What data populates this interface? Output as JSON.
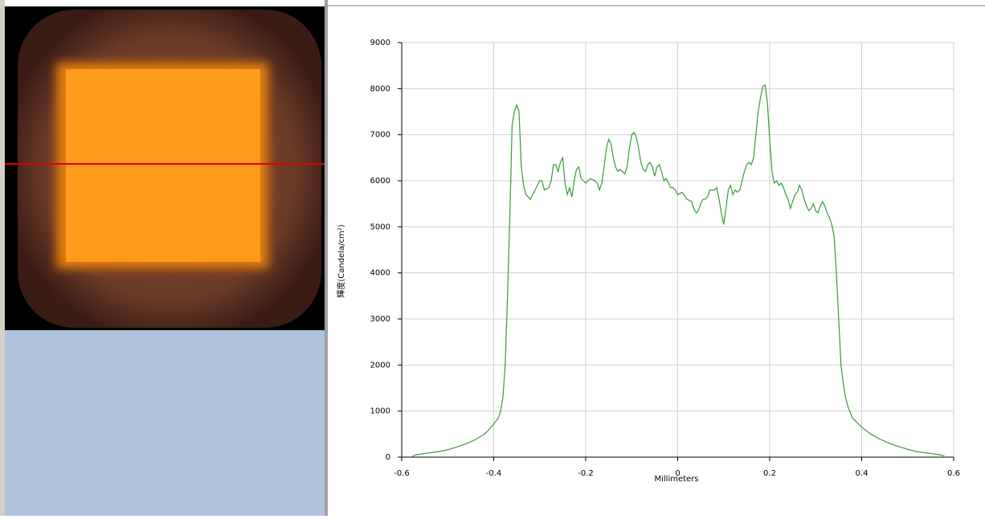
{
  "chart_data": {
    "type": "line",
    "x_label": "Millimeters",
    "y_label": "輝度(Candela/cm²)",
    "xlim": [
      -0.6,
      0.6
    ],
    "xticks": [
      -0.6,
      -0.4,
      -0.2,
      0,
      0.2,
      0.4,
      0.6
    ],
    "ylim": [
      0,
      9000
    ],
    "yticks": [
      0,
      1000,
      2000,
      3000,
      4000,
      5000,
      6000,
      7000,
      8000,
      9000
    ],
    "grid": true,
    "series": [
      {
        "color": "#3a9a3a",
        "x": [
          -0.58,
          -0.57,
          -0.55,
          -0.52,
          -0.5,
          -0.48,
          -0.46,
          -0.44,
          -0.42,
          -0.41,
          -0.4,
          -0.39,
          -0.385,
          -0.38,
          -0.375,
          -0.37,
          -0.365,
          -0.36,
          -0.355,
          -0.35,
          -0.345,
          -0.34,
          -0.335,
          -0.33,
          -0.32,
          -0.31,
          -0.3,
          -0.295,
          -0.29,
          -0.28,
          -0.275,
          -0.27,
          -0.265,
          -0.26,
          -0.255,
          -0.25,
          -0.245,
          -0.24,
          -0.235,
          -0.23,
          -0.225,
          -0.22,
          -0.215,
          -0.21,
          -0.2,
          -0.19,
          -0.18,
          -0.175,
          -0.17,
          -0.165,
          -0.16,
          -0.155,
          -0.15,
          -0.145,
          -0.14,
          -0.135,
          -0.13,
          -0.125,
          -0.12,
          -0.115,
          -0.11,
          -0.105,
          -0.1,
          -0.095,
          -0.09,
          -0.085,
          -0.08,
          -0.075,
          -0.07,
          -0.065,
          -0.06,
          -0.055,
          -0.05,
          -0.045,
          -0.04,
          -0.035,
          -0.03,
          -0.025,
          -0.02,
          -0.015,
          -0.01,
          -0.005,
          0,
          0.01,
          0.02,
          0.03,
          0.035,
          0.04,
          0.045,
          0.05,
          0.055,
          0.06,
          0.065,
          0.07,
          0.08,
          0.085,
          0.09,
          0.095,
          0.1,
          0.105,
          0.11,
          0.115,
          0.12,
          0.125,
          0.13,
          0.135,
          0.14,
          0.145,
          0.15,
          0.155,
          0.16,
          0.165,
          0.17,
          0.175,
          0.18,
          0.185,
          0.19,
          0.195,
          0.2,
          0.205,
          0.21,
          0.215,
          0.22,
          0.225,
          0.23,
          0.235,
          0.24,
          0.245,
          0.25,
          0.255,
          0.26,
          0.265,
          0.27,
          0.275,
          0.28,
          0.285,
          0.29,
          0.295,
          0.3,
          0.305,
          0.31,
          0.315,
          0.32,
          0.325,
          0.33,
          0.335,
          0.34,
          0.345,
          0.35,
          0.355,
          0.36,
          0.365,
          0.37,
          0.38,
          0.4,
          0.42,
          0.44,
          0.46,
          0.48,
          0.5,
          0.52,
          0.55,
          0.57,
          0.58
        ],
        "values": [
          0,
          50,
          80,
          120,
          160,
          220,
          290,
          380,
          500,
          600,
          720,
          850,
          1000,
          1300,
          2000,
          3500,
          5200,
          7200,
          7500,
          7650,
          7500,
          6300,
          5900,
          5700,
          5600,
          5800,
          6000,
          6000,
          5800,
          5850,
          6000,
          6350,
          6350,
          6200,
          6400,
          6500,
          5950,
          5700,
          5850,
          5650,
          6000,
          6250,
          6300,
          6050,
          5950,
          6050,
          6000,
          5950,
          5800,
          5950,
          6300,
          6700,
          6900,
          6800,
          6500,
          6300,
          6200,
          6250,
          6200,
          6150,
          6300,
          6700,
          7000,
          7050,
          6950,
          6700,
          6400,
          6250,
          6200,
          6350,
          6400,
          6300,
          6100,
          6300,
          6350,
          6200,
          6000,
          6050,
          5950,
          5850,
          5850,
          5800,
          5700,
          5750,
          5600,
          5550,
          5400,
          5300,
          5350,
          5500,
          5600,
          5600,
          5650,
          5800,
          5800,
          5850,
          5600,
          5300,
          5050,
          5400,
          5800,
          5900,
          5700,
          5800,
          5750,
          5800,
          6000,
          6200,
          6350,
          6400,
          6350,
          6500,
          7000,
          7500,
          7800,
          8050,
          8080,
          7700,
          6900,
          6200,
          5950,
          6000,
          5900,
          5950,
          5850,
          5700,
          5600,
          5400,
          5550,
          5700,
          5750,
          5900,
          5800,
          5600,
          5450,
          5350,
          5400,
          5500,
          5350,
          5300,
          5450,
          5550,
          5450,
          5300,
          5200,
          5050,
          4800,
          4000,
          3000,
          2000,
          1600,
          1300,
          1100,
          850,
          650,
          500,
          390,
          300,
          230,
          170,
          120,
          80,
          50,
          30
        ]
      }
    ]
  }
}
